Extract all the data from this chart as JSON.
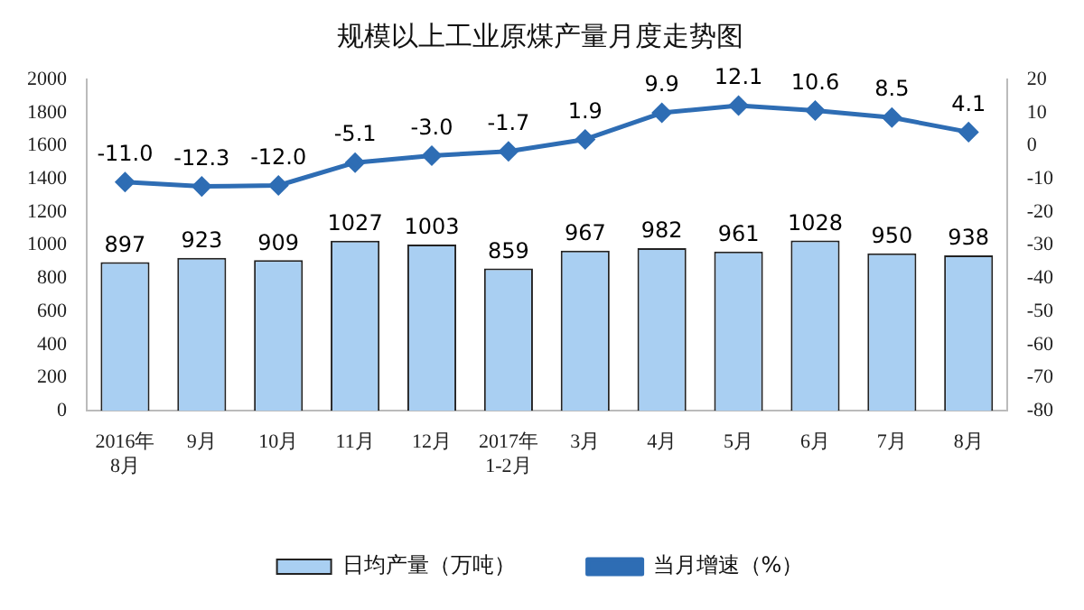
{
  "chart_data": {
    "type": "bar",
    "title": "规模以上工业原煤产量月度走势图",
    "categories": [
      "2016年\n8月",
      "9月",
      "10月",
      "11月",
      "12月",
      "2017年\n1-2月",
      "3月",
      "4月",
      "5月",
      "6月",
      "7月",
      "8月"
    ],
    "series": [
      {
        "name": "日均产量（万吨）",
        "color": "#a9cff2",
        "values": [
          897,
          923,
          909,
          1027,
          1003,
          859,
          967,
          982,
          961,
          1028,
          950,
          938
        ]
      },
      {
        "name": "当月增速（%）",
        "type": "line",
        "axis": "y2",
        "color": "#2e6db4",
        "marker": "diamond",
        "values": [
          -11.0,
          -12.3,
          -12.0,
          -5.1,
          -3.0,
          -1.7,
          1.9,
          9.9,
          12.1,
          10.6,
          8.5,
          4.1
        ],
        "value_labels": [
          "-11.0",
          "-12.3",
          "-12.0",
          "-5.1",
          "-3.0",
          "-1.7",
          "1.9",
          "9.9",
          "12.1",
          "10.6",
          "8.5",
          "4.1"
        ]
      }
    ],
    "ylim": [
      0,
      2000
    ],
    "yticks": [
      0,
      200,
      400,
      600,
      800,
      1000,
      1200,
      1400,
      1600,
      1800,
      2000
    ],
    "y2lim": [
      -80,
      20
    ],
    "y2ticks": [
      -80,
      -70,
      -60,
      -50,
      -40,
      -30,
      -20,
      -10,
      0,
      10,
      20
    ],
    "data_labels": true,
    "grid": false,
    "legend": "bottom"
  }
}
